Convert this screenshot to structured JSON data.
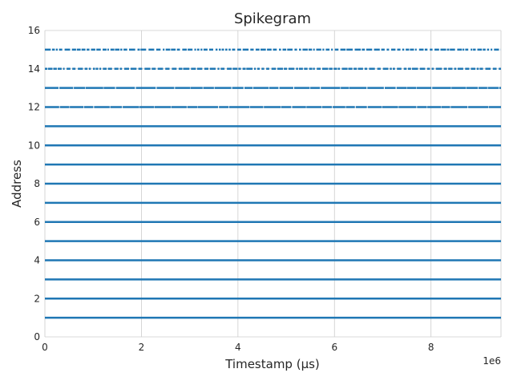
{
  "chart_data": {
    "type": "scatter",
    "title": "Spikegram",
    "xlabel": "Timestamp (μs)",
    "ylabel": "Address",
    "x_offset_label": "1e6",
    "xlim": [
      0,
      9.45
    ],
    "ylim": [
      0,
      16
    ],
    "x_ticks": [
      "0",
      "2",
      "4",
      "6",
      "8"
    ],
    "y_ticks": [
      "0",
      "2",
      "4",
      "6",
      "8",
      "10",
      "12",
      "14",
      "16"
    ],
    "grid": true,
    "marker_color": "#1f77b4",
    "series": [
      {
        "address": 1,
        "density": "dense"
      },
      {
        "address": 2,
        "density": "dense"
      },
      {
        "address": 3,
        "density": "dense"
      },
      {
        "address": 4,
        "density": "dense"
      },
      {
        "address": 5,
        "density": "dense"
      },
      {
        "address": 6,
        "density": "dense"
      },
      {
        "address": 7,
        "density": "dense"
      },
      {
        "address": 8,
        "density": "dense"
      },
      {
        "address": 9,
        "density": "dense"
      },
      {
        "address": 10,
        "density": "dense"
      },
      {
        "address": 11,
        "density": "dense"
      },
      {
        "address": 12,
        "density": "medium"
      },
      {
        "address": 13,
        "density": "medium"
      },
      {
        "address": 14,
        "density": "sparse"
      },
      {
        "address": 15,
        "density": "sparse"
      }
    ]
  }
}
